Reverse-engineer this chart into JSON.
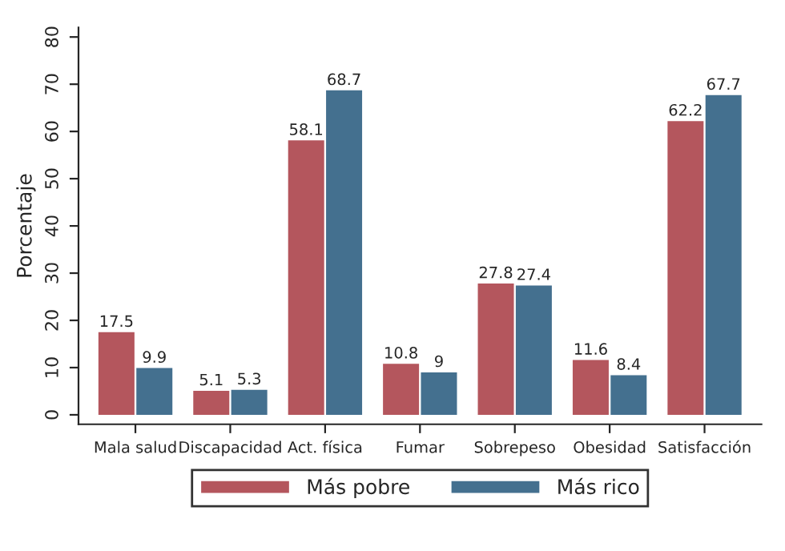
{
  "chart_data": {
    "type": "bar",
    "ylabel": "Porcentaje",
    "categories": [
      "Mala salud",
      "Discapacidad",
      "Act. física",
      "Fumar",
      "Sobrepeso",
      "Obesidad",
      "Satisfacción"
    ],
    "series": [
      {
        "name": "Más pobre",
        "color": "#b4565d",
        "values": [
          17.5,
          5.1,
          58.1,
          10.8,
          27.8,
          11.6,
          62.2
        ]
      },
      {
        "name": "Más rico",
        "color": "#44708f",
        "values": [
          9.9,
          5.3,
          68.7,
          9,
          27.4,
          8.4,
          67.7
        ]
      }
    ],
    "ylim": [
      -2,
      82
    ],
    "yticks": [
      0,
      10,
      20,
      30,
      40,
      50,
      60,
      70,
      80
    ],
    "data_labels": true,
    "grid": false,
    "legend": "bottom"
  }
}
